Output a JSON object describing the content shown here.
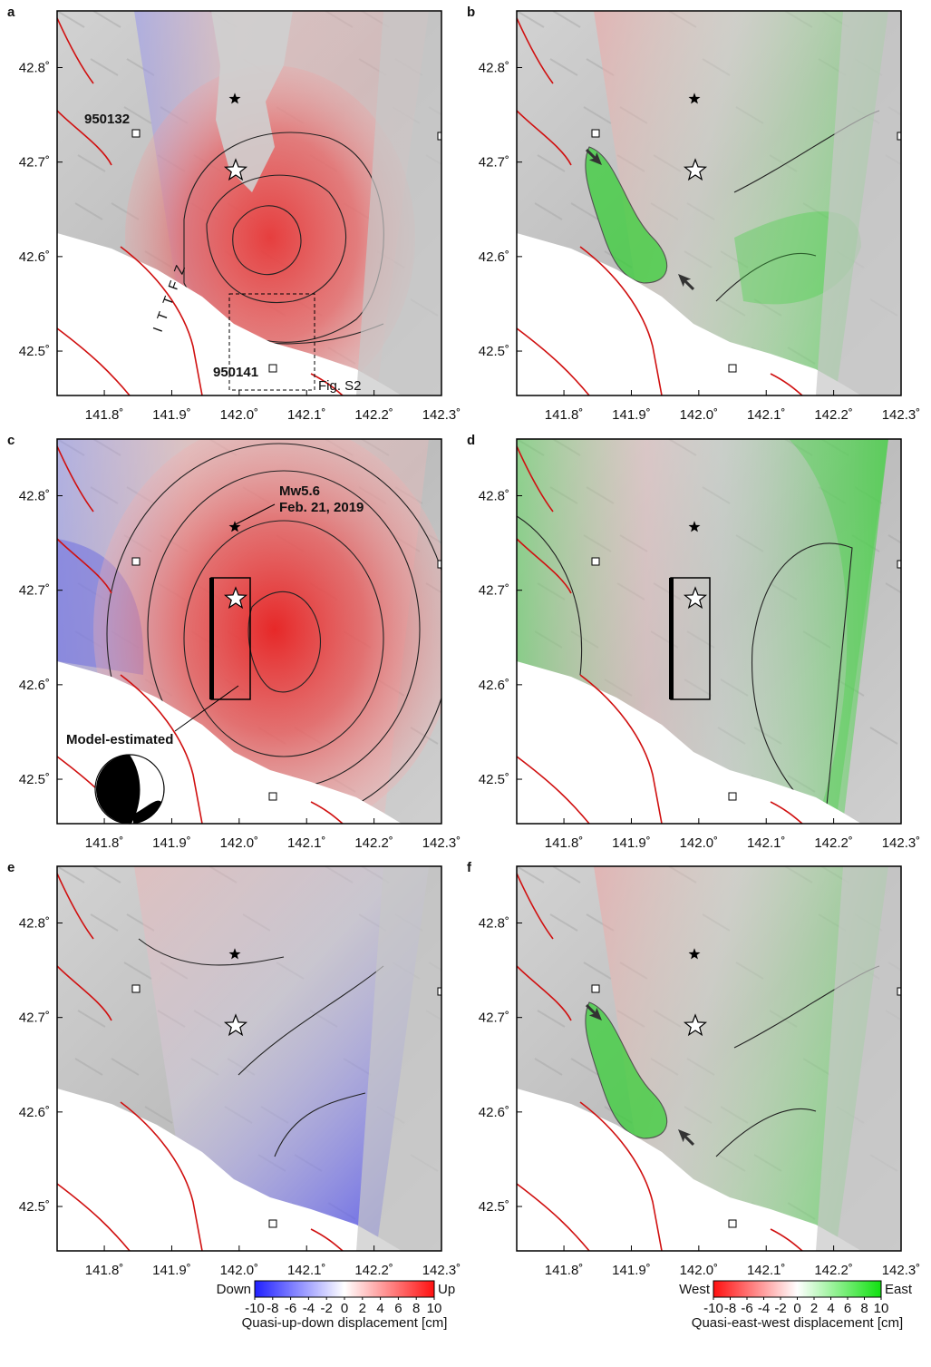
{
  "axes": {
    "xlim": [
      141.73,
      142.3
    ],
    "ylim": [
      42.453,
      42.86
    ],
    "xticks": [
      {
        "value": 141.8,
        "label": "141.8˚"
      },
      {
        "value": 141.9,
        "label": "141.9˚"
      },
      {
        "value": 142.0,
        "label": "142.0˚"
      },
      {
        "value": 142.1,
        "label": "142.1˚"
      },
      {
        "value": 142.2,
        "label": "142.2˚"
      },
      {
        "value": 142.3,
        "label": "142.3˚"
      }
    ],
    "yticks": [
      {
        "value": 42.5,
        "label": "42.5˚"
      },
      {
        "value": 42.6,
        "label": "42.6˚"
      },
      {
        "value": 42.7,
        "label": "42.7˚"
      },
      {
        "value": 42.8,
        "label": "42.8˚"
      }
    ]
  },
  "panels": [
    {
      "label": "a",
      "annotations": [
        "950132",
        "950141",
        "Fig. S2",
        "ITTFZ"
      ]
    },
    {
      "label": "b",
      "annotations": []
    },
    {
      "label": "c",
      "annotations": [
        "Mw5.6",
        "Feb. 21, 2019",
        "Model-estimated"
      ]
    },
    {
      "label": "d",
      "annotations": []
    },
    {
      "label": "e",
      "annotations": []
    },
    {
      "label": "f",
      "annotations": []
    }
  ],
  "colorbars": [
    {
      "low_label": "Down",
      "high_label": "Up",
      "title": "Quasi-up-down displacement [cm]",
      "lim": [
        -10,
        10
      ],
      "ticks": [
        -10,
        -8,
        -6,
        -4,
        -2,
        0,
        2,
        4,
        6,
        8,
        10
      ],
      "colors": [
        "#2020ff",
        "#ffffff",
        "#ff1010"
      ]
    },
    {
      "low_label": "West",
      "high_label": "East",
      "title": "Quasi-east-west displacement [cm]",
      "lim": [
        -10,
        10
      ],
      "ticks": [
        -10,
        -8,
        -6,
        -4,
        -2,
        0,
        2,
        4,
        6,
        8,
        10
      ],
      "colors": [
        "#ff1010",
        "#ffffff",
        "#10e010"
      ]
    }
  ]
}
